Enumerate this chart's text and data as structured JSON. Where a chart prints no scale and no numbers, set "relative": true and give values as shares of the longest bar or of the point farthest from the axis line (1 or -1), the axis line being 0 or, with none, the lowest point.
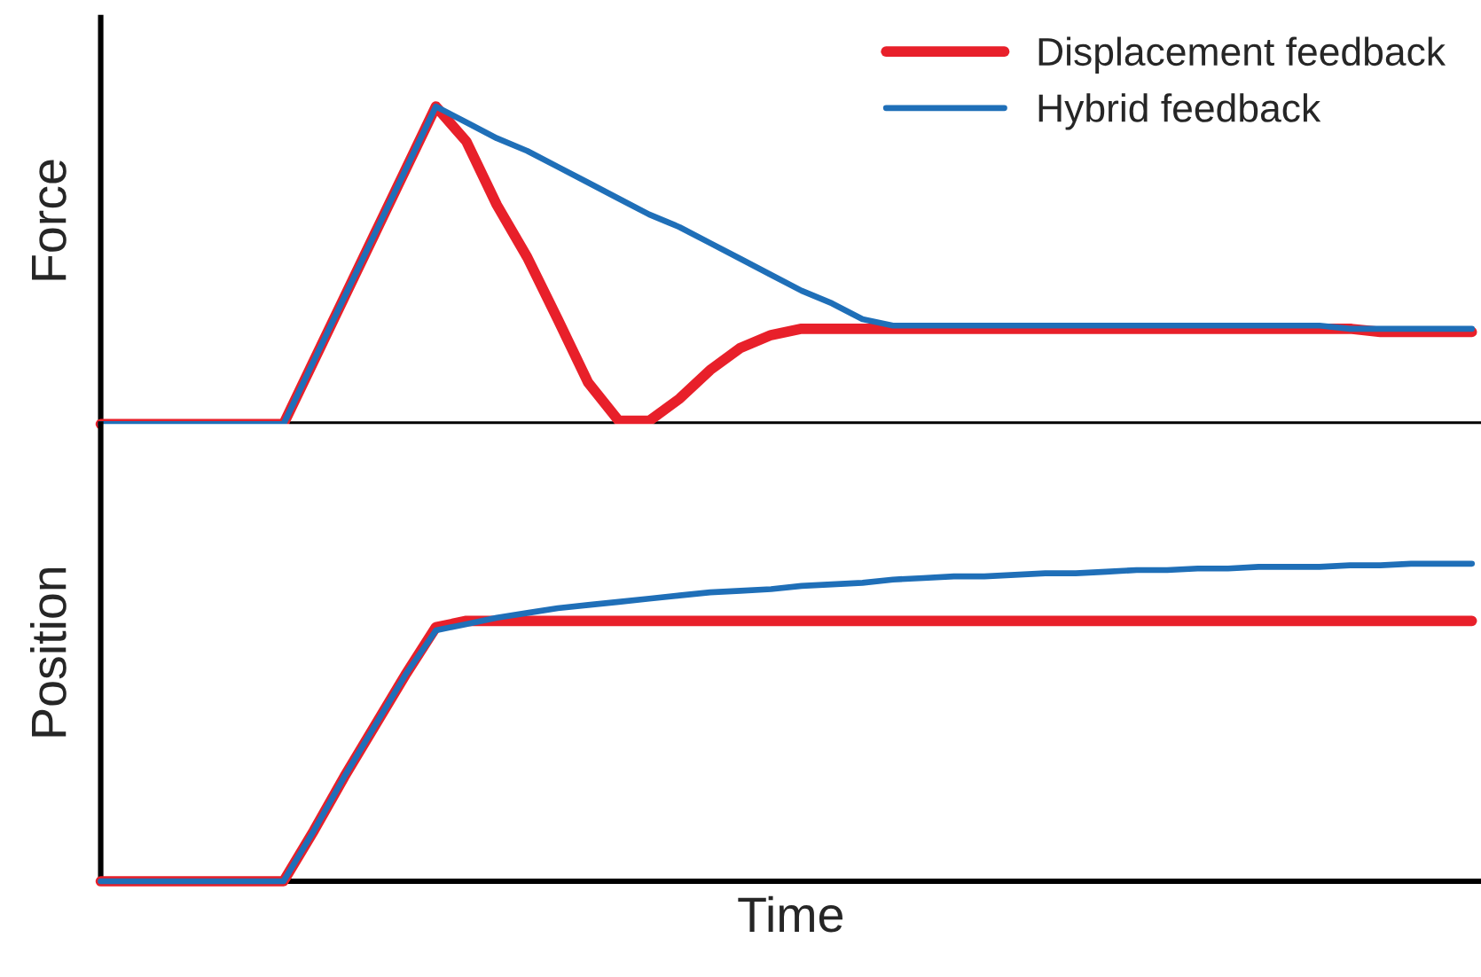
{
  "chart_data": [
    {
      "type": "line",
      "ylabel": "Force",
      "relative": true,
      "tick_labels": false,
      "legend": "top right",
      "grid": false,
      "line_style": "solid",
      "marker": "none",
      "categories": [
        null,
        null,
        null,
        null,
        null,
        null,
        null,
        null,
        null,
        null,
        null,
        null,
        null,
        null,
        null,
        null,
        null,
        null,
        null,
        null,
        null,
        null,
        null,
        null,
        null,
        null,
        null,
        null,
        null,
        null,
        null,
        null,
        null,
        null,
        null,
        null,
        null,
        null,
        null,
        null,
        null,
        null,
        null,
        null,
        null,
        null
      ],
      "series": [
        {
          "name": "Displacement feedback",
          "color": "#e8202a",
          "values": [
            0,
            0,
            0,
            0,
            0,
            0,
            0,
            0.2,
            0.4,
            0.6,
            0.8,
            1,
            0.89,
            0.69,
            0.525,
            0.33,
            0.13,
            0.01,
            0.01,
            0.08,
            0.17,
            0.24,
            0.28,
            0.3,
            0.3,
            0.3,
            0.3,
            0.3,
            0.3,
            0.3,
            0.3,
            0.3,
            0.3,
            0.3,
            0.3,
            0.3,
            0.3,
            0.3,
            0.3,
            0.3,
            0.3,
            0.3,
            0.29,
            0.29,
            0.29,
            0.29
          ]
        },
        {
          "name": "Hybrid feedback",
          "color": "#1f6fb8",
          "values": [
            0,
            0,
            0,
            0,
            0,
            0,
            0,
            0.2,
            0.4,
            0.6,
            0.8,
            1,
            0.95,
            0.9,
            0.86,
            0.81,
            0.76,
            0.71,
            0.66,
            0.62,
            0.57,
            0.52,
            0.47,
            0.42,
            0.38,
            0.33,
            0.31,
            0.31,
            0.31,
            0.31,
            0.31,
            0.31,
            0.31,
            0.31,
            0.31,
            0.31,
            0.31,
            0.31,
            0.31,
            0.31,
            0.31,
            0.3,
            0.3,
            0.3,
            0.3,
            0.3
          ]
        }
      ]
    },
    {
      "type": "line",
      "ylabel": "Position",
      "xlabel": "Time",
      "relative": true,
      "tick_labels": false,
      "grid": false,
      "line_style": "solid",
      "marker": "none",
      "categories": [
        null,
        null,
        null,
        null,
        null,
        null,
        null,
        null,
        null,
        null,
        null,
        null,
        null,
        null,
        null,
        null,
        null,
        null,
        null,
        null,
        null,
        null,
        null,
        null,
        null,
        null,
        null,
        null,
        null,
        null,
        null,
        null,
        null,
        null,
        null,
        null,
        null,
        null,
        null,
        null,
        null,
        null,
        null,
        null,
        null,
        null
      ],
      "series": [
        {
          "color": "#e8202a",
          "values": [
            0,
            0,
            0,
            0,
            0,
            0,
            0,
            0.16,
            0.33,
            0.49,
            0.65,
            0.8,
            0.82,
            0.82,
            0.82,
            0.82,
            0.82,
            0.82,
            0.82,
            0.82,
            0.82,
            0.82,
            0.82,
            0.82,
            0.82,
            0.82,
            0.82,
            0.82,
            0.82,
            0.82,
            0.82,
            0.82,
            0.82,
            0.82,
            0.82,
            0.82,
            0.82,
            0.82,
            0.82,
            0.82,
            0.82,
            0.82,
            0.82,
            0.82,
            0.82,
            0.82
          ]
        },
        {
          "color": "#1f6fb8",
          "values": [
            0,
            0,
            0,
            0,
            0,
            0,
            0,
            0.16,
            0.33,
            0.49,
            0.65,
            0.79,
            0.81,
            0.83,
            0.845,
            0.86,
            0.87,
            0.88,
            0.89,
            0.9,
            0.91,
            0.915,
            0.92,
            0.93,
            0.935,
            0.94,
            0.95,
            0.955,
            0.96,
            0.96,
            0.965,
            0.97,
            0.97,
            0.975,
            0.98,
            0.98,
            0.985,
            0.985,
            0.99,
            0.99,
            0.99,
            0.995,
            0.995,
            1,
            1,
            1
          ]
        }
      ]
    }
  ]
}
